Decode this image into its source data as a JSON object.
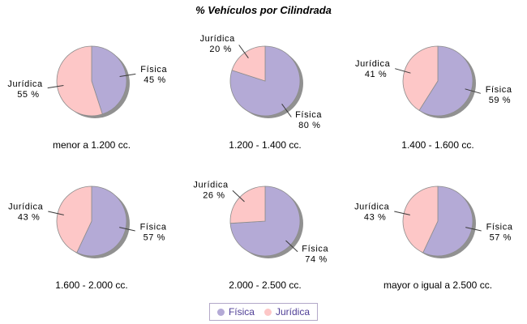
{
  "title": "% Vehículos por Cilindrada",
  "value_suffix": " %",
  "colors": {
    "fisica": "#b4aad6",
    "juridica": "#fdc7c7",
    "shadow": "#919191",
    "slice_outline": "#8c8c8c",
    "leader_line": "#3a3a3a",
    "label_text": "#000000",
    "legend_text": "#4f3e96",
    "legend_border": "#b2a8c8",
    "background": "#ffffff"
  },
  "legend": {
    "position": "bottom",
    "items": [
      {
        "label": "Física",
        "color": "#b4aad6"
      },
      {
        "label": "Jurídica",
        "color": "#fdc7c7"
      }
    ]
  },
  "chart_data": [
    {
      "type": "pie",
      "title": "menor a 1.200 cc.",
      "categories": [
        "Física",
        "Jurídica"
      ],
      "values": [
        45,
        55
      ],
      "start_angle": "top",
      "direction": "clockwise"
    },
    {
      "type": "pie",
      "title": "1.200 - 1.400 cc.",
      "categories": [
        "Física",
        "Jurídica"
      ],
      "values": [
        80,
        20
      ],
      "start_angle": "top",
      "direction": "clockwise"
    },
    {
      "type": "pie",
      "title": "1.400 - 1.600 cc.",
      "categories": [
        "Física",
        "Jurídica"
      ],
      "values": [
        59,
        41
      ],
      "start_angle": "top",
      "direction": "clockwise"
    },
    {
      "type": "pie",
      "title": "1.600 - 2.000 cc.",
      "categories": [
        "Física",
        "Jurídica"
      ],
      "values": [
        57,
        43
      ],
      "start_angle": "top",
      "direction": "clockwise"
    },
    {
      "type": "pie",
      "title": "2.000 - 2.500 cc.",
      "categories": [
        "Física",
        "Jurídica"
      ],
      "values": [
        74,
        26
      ],
      "start_angle": "top",
      "direction": "clockwise"
    },
    {
      "type": "pie",
      "title": "mayor o igual a 2.500 cc.",
      "categories": [
        "Física",
        "Jurídica"
      ],
      "values": [
        57,
        43
      ],
      "start_angle": "top",
      "direction": "clockwise"
    }
  ]
}
